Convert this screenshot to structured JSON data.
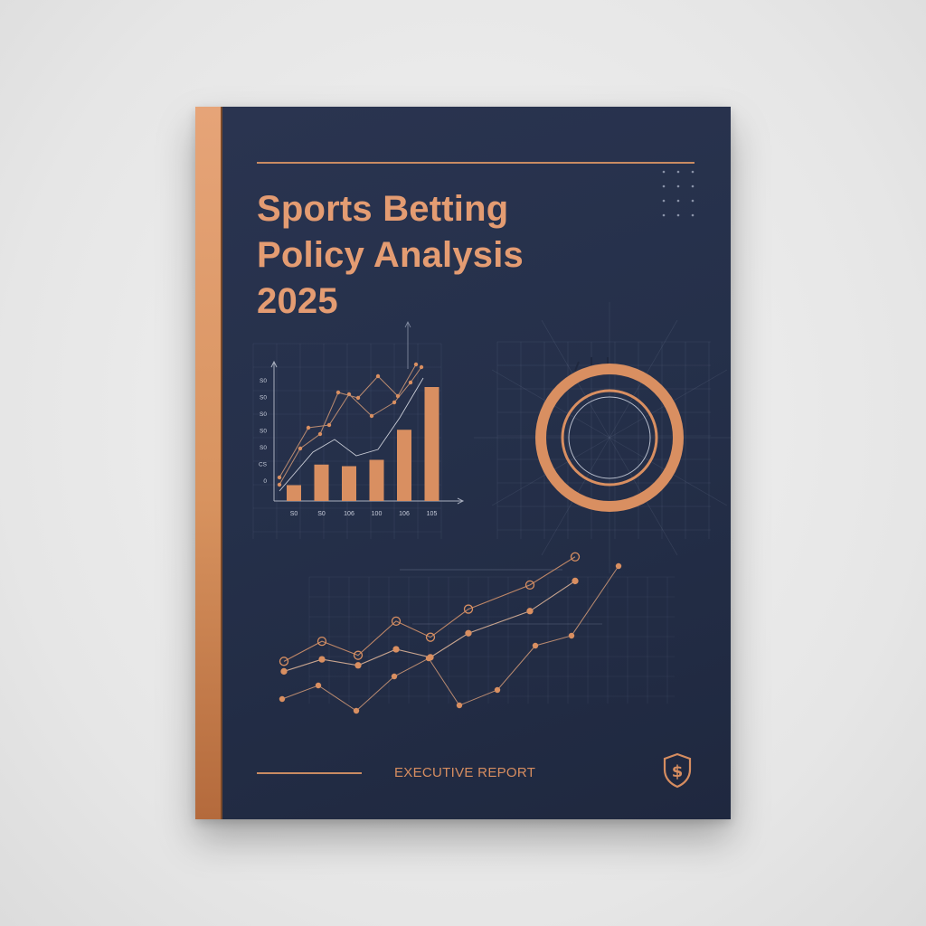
{
  "cover": {
    "title_lines": [
      "Sports Betting",
      "Policy Analysis",
      "2025"
    ],
    "footer_label": "EXECUTIVE REPORT"
  },
  "icons": {
    "badge": "shield-dollar-icon",
    "dots": "dot-grid-icon"
  },
  "colors": {
    "cover": "#25304a",
    "accent": "#e49c72",
    "spine": "#d8935f",
    "background": "#e8e8e8"
  },
  "chart_data": [
    {
      "type": "bar",
      "categories": [
        "S0",
        "S0",
        "106",
        "100",
        "106",
        "105"
      ],
      "values": [
        1,
        2.3,
        2.2,
        2.6,
        4.5,
        7.2
      ],
      "ytick_labels": [
        "S0",
        "S0",
        "S0",
        "S0",
        "S0",
        "CS",
        "0"
      ],
      "ylim": [
        0,
        8
      ]
    },
    {
      "type": "pie",
      "values": [
        1
      ]
    },
    {
      "type": "line",
      "series": [
        {
          "values": [
            3,
            4,
            3.3,
            5,
            4.2,
            5.6,
            6.8,
            8.2
          ]
        },
        {
          "values": [
            2.5,
            3.1,
            2.8,
            3.6,
            3.2,
            4.4,
            5.5,
            7
          ]
        }
      ],
      "ylim": [
        0,
        9
      ]
    }
  ]
}
